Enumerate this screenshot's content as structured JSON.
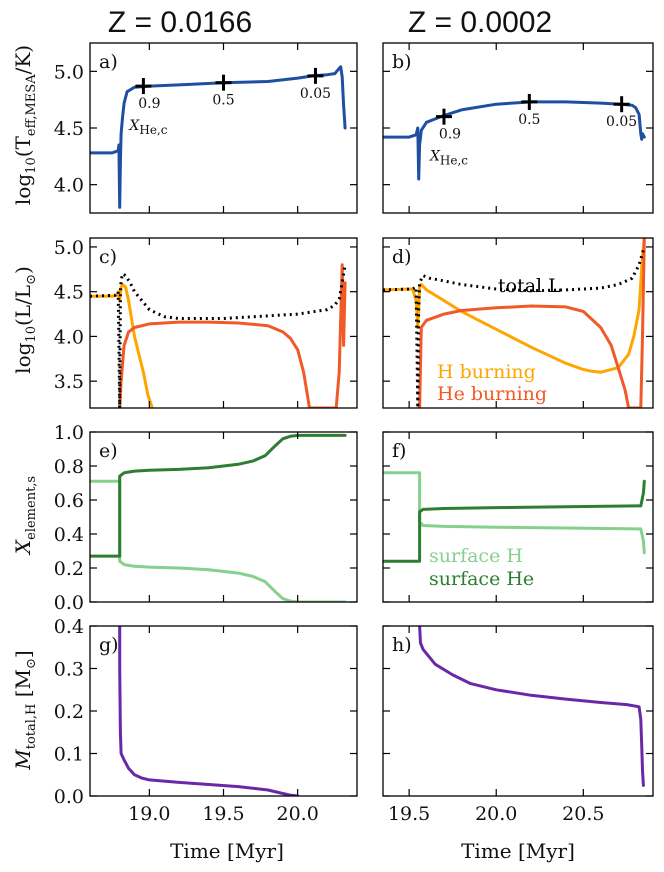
{
  "column_titles": [
    "Z = 0.0166",
    "Z = 0.0002"
  ],
  "x_axis_label": "Time [Myr]",
  "colors": {
    "teff": "#1f4fa0",
    "h_burning": "#ffa500",
    "he_burning": "#f05a28",
    "total_L": "#000000",
    "surface_H": "#86d08d",
    "surface_He": "#2e7d32",
    "m_total_H": "#6a28a8"
  },
  "chart_data": [
    {
      "id": "a",
      "panel_label": "a)",
      "type": "line",
      "column": 0,
      "row": 0,
      "ylabel": "log10(T_eff,MESA/K)",
      "xlim": [
        18.6,
        20.4
      ],
      "ylim": [
        3.75,
        5.25
      ],
      "y_ticks": [
        "4.0",
        "4.5",
        "5.0"
      ],
      "y_tick_values": [
        4.0,
        4.5,
        5.0
      ],
      "x_tick_values": [
        19.0,
        19.5,
        20.0
      ],
      "series": [
        {
          "name": "Teff",
          "color_key": "teff",
          "dashed": false,
          "x": [
            18.6,
            18.75,
            18.79,
            18.795,
            18.8,
            18.805,
            18.81,
            18.82,
            18.83,
            18.85,
            18.9,
            19.0,
            19.2,
            19.5,
            19.8,
            20.0,
            20.1,
            20.2,
            20.25,
            20.27,
            20.29,
            20.3,
            20.31,
            20.32
          ],
          "y": [
            4.28,
            4.28,
            4.3,
            4.35,
            3.8,
            4.2,
            4.45,
            4.6,
            4.72,
            4.82,
            4.86,
            4.87,
            4.88,
            4.9,
            4.91,
            4.94,
            4.96,
            4.97,
            4.98,
            5.01,
            5.04,
            4.95,
            4.7,
            4.5
          ]
        }
      ],
      "markers": [
        {
          "x": 18.96,
          "y": 4.87,
          "label": "0.9"
        },
        {
          "x": 19.5,
          "y": 4.9,
          "label": "0.5"
        },
        {
          "x": 20.12,
          "y": 4.96,
          "label": "0.05"
        }
      ],
      "extra_label": "X_He,c"
    },
    {
      "id": "b",
      "panel_label": "b)",
      "type": "line",
      "column": 1,
      "row": 0,
      "ylabel": "",
      "xlim": [
        19.35,
        20.9
      ],
      "ylim": [
        3.75,
        5.25
      ],
      "y_tick_values": [
        4.0,
        4.5,
        5.0
      ],
      "x_tick_values": [
        19.5,
        20.0,
        20.5
      ],
      "series": [
        {
          "name": "Teff",
          "color_key": "teff",
          "dashed": false,
          "x": [
            19.35,
            19.5,
            19.54,
            19.55,
            19.555,
            19.56,
            19.57,
            19.6,
            19.65,
            19.7,
            19.8,
            20.0,
            20.2,
            20.4,
            20.6,
            20.72,
            20.78,
            20.8,
            20.82,
            20.83,
            20.835,
            20.84,
            20.85
          ],
          "y": [
            4.42,
            4.42,
            4.44,
            4.5,
            4.05,
            4.35,
            4.48,
            4.55,
            4.58,
            4.61,
            4.66,
            4.71,
            4.73,
            4.73,
            4.72,
            4.71,
            4.7,
            4.68,
            4.62,
            4.45,
            4.4,
            4.45,
            4.42
          ]
        }
      ],
      "markers": [
        {
          "x": 19.7,
          "y": 4.6,
          "label": "0.9"
        },
        {
          "x": 20.19,
          "y": 4.73,
          "label": "0.5"
        },
        {
          "x": 20.72,
          "y": 4.71,
          "label": "0.05"
        }
      ],
      "extra_label": "X_He,c"
    },
    {
      "id": "c",
      "panel_label": "c)",
      "type": "line",
      "column": 0,
      "row": 1,
      "ylabel": "log10(L/L_sun)",
      "xlim": [
        18.6,
        20.4
      ],
      "ylim": [
        3.2,
        5.1
      ],
      "y_ticks": [
        "3.5",
        "4.0",
        "4.5",
        "5.0"
      ],
      "y_tick_values": [
        3.5,
        4.0,
        4.5,
        5.0
      ],
      "x_tick_values": [
        19.0,
        19.5,
        20.0
      ],
      "series": [
        {
          "name": "H burning",
          "color_key": "h_burning",
          "dashed": false,
          "x": [
            18.6,
            18.75,
            18.78,
            18.79,
            18.8,
            18.81,
            18.82,
            18.84,
            18.86,
            18.88,
            18.9,
            18.93,
            18.96,
            18.99,
            19.02
          ],
          "y": [
            4.45,
            4.45,
            4.46,
            4.5,
            4.4,
            4.55,
            4.58,
            4.55,
            4.4,
            4.2,
            4.0,
            3.8,
            3.6,
            3.35,
            3.2
          ]
        },
        {
          "name": "He burning",
          "color_key": "he_burning",
          "dashed": false,
          "x": [
            18.8,
            18.81,
            18.83,
            18.86,
            18.9,
            19.0,
            19.2,
            19.4,
            19.6,
            19.8,
            19.9,
            19.95,
            20.0,
            20.04,
            20.06,
            20.08,
            20.1,
            20.26,
            20.28,
            20.29,
            20.3,
            20.31,
            20.32
          ],
          "y": [
            3.2,
            3.5,
            3.9,
            4.05,
            4.1,
            4.14,
            4.16,
            4.16,
            4.15,
            4.12,
            4.05,
            3.98,
            3.85,
            3.6,
            3.4,
            3.2,
            3.2,
            3.2,
            3.6,
            4.2,
            4.8,
            3.9,
            4.6
          ]
        },
        {
          "name": "total L",
          "color_key": "total_L",
          "dashed": true,
          "x": [
            18.6,
            18.77,
            18.79,
            18.8,
            18.805,
            18.81,
            18.82,
            18.84,
            18.87,
            18.9,
            18.95,
            19.0,
            19.1,
            19.2,
            19.5,
            20.0,
            20.2,
            20.25,
            20.28,
            20.3,
            20.32
          ],
          "y": [
            4.45,
            4.46,
            4.5,
            3.2,
            4.5,
            4.62,
            4.7,
            4.68,
            4.6,
            4.5,
            4.4,
            4.3,
            4.22,
            4.2,
            4.2,
            4.25,
            4.3,
            4.35,
            4.42,
            4.6,
            4.8
          ]
        }
      ]
    },
    {
      "id": "d",
      "panel_label": "d)",
      "type": "line",
      "column": 1,
      "row": 1,
      "ylabel": "",
      "xlim": [
        19.35,
        20.9
      ],
      "ylim": [
        3.2,
        5.1
      ],
      "y_tick_values": [
        3.5,
        4.0,
        4.5,
        5.0
      ],
      "x_tick_values": [
        19.5,
        20.0,
        20.5
      ],
      "series": [
        {
          "name": "H burning",
          "color_key": "h_burning",
          "dashed": false,
          "x": [
            19.35,
            19.52,
            19.54,
            19.55,
            19.56,
            19.57,
            19.6,
            19.7,
            19.8,
            20.0,
            20.2,
            20.4,
            20.5,
            20.55,
            20.6,
            20.7,
            20.76,
            20.79,
            20.82,
            20.83,
            20.84,
            20.85
          ],
          "y": [
            4.52,
            4.53,
            4.4,
            4.1,
            4.55,
            4.58,
            4.52,
            4.4,
            4.28,
            4.08,
            3.88,
            3.7,
            3.63,
            3.61,
            3.6,
            3.65,
            3.8,
            4.0,
            4.3,
            4.6,
            4.9,
            5.1
          ]
        },
        {
          "name": "He burning",
          "color_key": "he_burning",
          "dashed": false,
          "x": [
            19.56,
            19.57,
            19.6,
            19.7,
            19.8,
            20.0,
            20.2,
            20.4,
            20.5,
            20.6,
            20.66,
            20.7,
            20.74,
            20.76,
            20.78,
            20.83,
            20.84,
            20.85
          ],
          "y": [
            3.2,
            4.1,
            4.18,
            4.25,
            4.29,
            4.32,
            4.34,
            4.33,
            4.28,
            4.1,
            3.9,
            3.65,
            3.4,
            3.2,
            3.2,
            3.2,
            4.0,
            5.1
          ]
        },
        {
          "name": "total L",
          "color_key": "total_L",
          "dashed": true,
          "x": [
            19.35,
            19.52,
            19.54,
            19.55,
            19.555,
            19.56,
            19.58,
            19.62,
            19.7,
            19.8,
            20.0,
            20.2,
            20.4,
            20.6,
            20.7,
            20.78,
            20.82,
            20.85
          ],
          "y": [
            4.52,
            4.53,
            4.55,
            3.2,
            4.3,
            4.6,
            4.68,
            4.65,
            4.62,
            4.58,
            4.53,
            4.51,
            4.52,
            4.54,
            4.58,
            4.65,
            4.8,
            5.0
          ]
        }
      ],
      "legend": [
        "total L",
        "H burning",
        "He burning"
      ]
    },
    {
      "id": "e",
      "panel_label": "e)",
      "type": "line",
      "column": 0,
      "row": 2,
      "ylabel": "X_element,s",
      "xlim": [
        18.6,
        20.4
      ],
      "ylim": [
        0.0,
        1.0
      ],
      "y_ticks": [
        "0.0",
        "0.2",
        "0.4",
        "0.6",
        "0.8",
        "1.0"
      ],
      "y_tick_values": [
        0.0,
        0.2,
        0.4,
        0.6,
        0.8,
        1.0
      ],
      "x_tick_values": [
        19.0,
        19.5,
        20.0
      ],
      "series": [
        {
          "name": "surface H",
          "color_key": "surface_H",
          "dashed": false,
          "x": [
            18.6,
            18.8,
            18.8,
            18.83,
            18.9,
            19.0,
            19.2,
            19.4,
            19.6,
            19.7,
            19.78,
            19.85,
            19.9,
            19.95,
            20.0,
            20.32
          ],
          "y": [
            0.71,
            0.71,
            0.24,
            0.22,
            0.21,
            0.205,
            0.2,
            0.19,
            0.17,
            0.15,
            0.12,
            0.06,
            0.02,
            0.005,
            0.0,
            0.0
          ]
        },
        {
          "name": "surface He",
          "color_key": "surface_He",
          "dashed": false,
          "x": [
            18.6,
            18.8,
            18.8,
            18.83,
            18.9,
            19.0,
            19.2,
            19.4,
            19.6,
            19.7,
            19.78,
            19.85,
            19.9,
            19.95,
            20.0,
            20.32
          ],
          "y": [
            0.27,
            0.27,
            0.74,
            0.76,
            0.77,
            0.775,
            0.78,
            0.79,
            0.81,
            0.83,
            0.86,
            0.92,
            0.96,
            0.975,
            0.98,
            0.98
          ]
        }
      ]
    },
    {
      "id": "f",
      "panel_label": "f)",
      "type": "line",
      "column": 1,
      "row": 2,
      "ylabel": "",
      "xlim": [
        19.35,
        20.9
      ],
      "ylim": [
        0.0,
        1.0
      ],
      "y_tick_values": [
        0.0,
        0.2,
        0.4,
        0.6,
        0.8,
        1.0
      ],
      "x_tick_values": [
        19.5,
        20.0,
        20.5
      ],
      "series": [
        {
          "name": "surface H",
          "color_key": "surface_H",
          "dashed": false,
          "x": [
            19.35,
            19.56,
            19.56,
            19.58,
            19.7,
            20.0,
            20.4,
            20.8,
            20.83,
            20.845,
            20.85
          ],
          "y": [
            0.76,
            0.76,
            0.47,
            0.45,
            0.445,
            0.44,
            0.435,
            0.43,
            0.43,
            0.36,
            0.29
          ]
        },
        {
          "name": "surface He",
          "color_key": "surface_He",
          "dashed": false,
          "x": [
            19.35,
            19.56,
            19.56,
            19.58,
            19.7,
            20.0,
            20.4,
            20.8,
            20.83,
            20.845,
            20.85
          ],
          "y": [
            0.24,
            0.24,
            0.53,
            0.545,
            0.55,
            0.555,
            0.56,
            0.565,
            0.565,
            0.64,
            0.71
          ]
        }
      ],
      "legend": [
        "surface H",
        "surface He"
      ]
    },
    {
      "id": "g",
      "panel_label": "g)",
      "type": "line",
      "column": 0,
      "row": 3,
      "ylabel": "M_total,H [M_sun]",
      "xlim": [
        18.6,
        20.4
      ],
      "ylim": [
        0.0,
        0.4
      ],
      "y_ticks": [
        "0.0",
        "0.1",
        "0.2",
        "0.3",
        "0.4"
      ],
      "y_tick_values": [
        0.0,
        0.1,
        0.2,
        0.3,
        0.4
      ],
      "x_ticks": [
        "19.0",
        "19.5",
        "20.0"
      ],
      "x_tick_values": [
        19.0,
        19.5,
        20.0
      ],
      "series": [
        {
          "name": "M_total,H",
          "color_key": "m_total_H",
          "dashed": false,
          "x": [
            18.8,
            18.8,
            18.805,
            18.81,
            18.83,
            18.86,
            18.9,
            18.95,
            19.0,
            19.2,
            19.4,
            19.6,
            19.8,
            19.9,
            19.95,
            20.0
          ],
          "y": [
            0.4,
            0.3,
            0.15,
            0.1,
            0.085,
            0.065,
            0.05,
            0.042,
            0.038,
            0.032,
            0.027,
            0.022,
            0.014,
            0.006,
            0.002,
            0.0
          ]
        }
      ]
    },
    {
      "id": "h",
      "panel_label": "h)",
      "type": "line",
      "column": 1,
      "row": 3,
      "ylabel": "",
      "xlim": [
        19.35,
        20.9
      ],
      "ylim": [
        0.0,
        0.4
      ],
      "y_tick_values": [
        0.0,
        0.1,
        0.2,
        0.3,
        0.4
      ],
      "x_ticks": [
        "19.5",
        "20.0",
        "20.5"
      ],
      "x_tick_values": [
        19.5,
        20.0,
        20.5
      ],
      "series": [
        {
          "name": "M_total,H",
          "color_key": "m_total_H",
          "dashed": false,
          "x": [
            19.56,
            19.565,
            19.58,
            19.65,
            19.75,
            19.85,
            20.0,
            20.2,
            20.4,
            20.6,
            20.75,
            20.82,
            20.83,
            20.835,
            20.84,
            20.845
          ],
          "y": [
            0.4,
            0.36,
            0.345,
            0.31,
            0.285,
            0.265,
            0.25,
            0.237,
            0.228,
            0.22,
            0.215,
            0.21,
            0.18,
            0.12,
            0.06,
            0.025
          ]
        }
      ]
    }
  ],
  "annotations": {
    "xhe_sub": "He,c",
    "xhe_main": "X",
    "ylabel_a_main": "log",
    "ylabel_a_sub": "10",
    "ylabel_a_rest": "(T",
    "ylabel_a_sub2": "eff,MESA",
    "ylabel_a_end": "/K)",
    "ylabel_c_main": "log",
    "ylabel_c_sub": "10",
    "ylabel_c_rest": "(L/L",
    "ylabel_c_sun": "⊙",
    "ylabel_c_end": ")",
    "ylabel_e_main": "X",
    "ylabel_e_sub": "element,s",
    "ylabel_g_main": "M",
    "ylabel_g_sub": "total,H",
    "ylabel_g_rest": " [M",
    "ylabel_g_sun": "⊙",
    "ylabel_g_end": "]"
  }
}
